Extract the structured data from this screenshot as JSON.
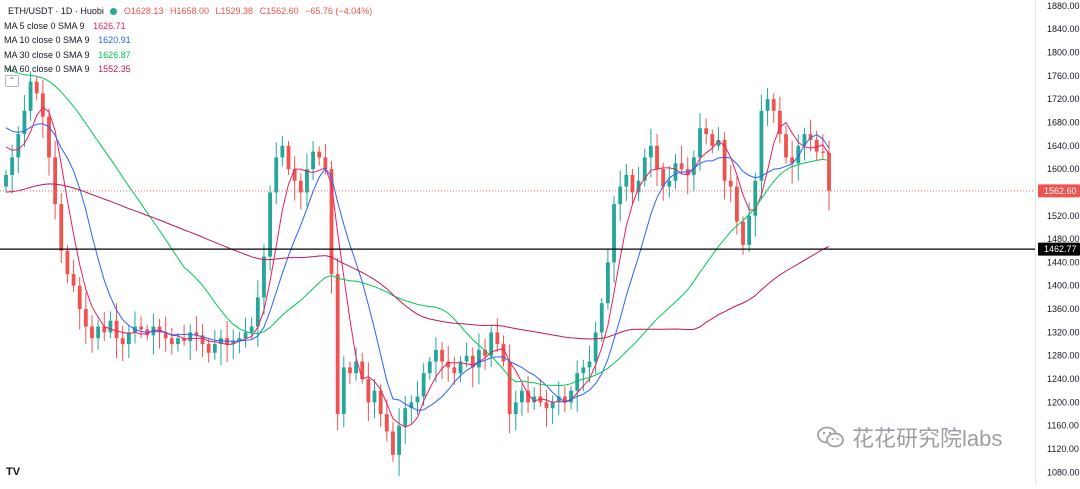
{
  "legend": {
    "symbol": "ETH/USDT · 1D · Huobi",
    "open": "O1628.13",
    "high": "H1658.00",
    "low": "L1529.38",
    "close": "C1562.60",
    "change": "−65.76 (−4.04%)",
    "ma5_label": "MA 5 close 0 SMA 9",
    "ma5_value": "1626.71",
    "ma10_label": "MA 10 close 0 SMA 9",
    "ma10_value": "1620.91",
    "ma30_label": "MA 30 close 0 SMA 9",
    "ma30_value": "1626.87",
    "ma60_label": "MA 60 close 0 SMA 9",
    "ma60_value": "1552.35"
  },
  "collapse_icon": "chevron-up-icon",
  "tv_logo": "TV",
  "watermark": {
    "text": "花花研究院labs",
    "icon": "wechat-icon"
  },
  "colors": {
    "up": "#26a69a",
    "down": "#ef5350",
    "ma5": "#e91e63",
    "ma10": "#2962ff",
    "ma30": "#00c853",
    "ma60": "#c2185b",
    "hline": "#000000",
    "price_tag": "#ef5350"
  },
  "chart_data": {
    "type": "candlestick",
    "title": "ETH/USDT · 1D · Huobi",
    "ylim": [
      1060,
      1890
    ],
    "y_ticks": [
      "1880.00",
      "1840.00",
      "1800.00",
      "1760.00",
      "1720.00",
      "1680.00",
      "1640.00",
      "1600.00",
      "1560.00",
      "1520.00",
      "1480.00",
      "1440.00",
      "1400.00",
      "1360.00",
      "1320.00",
      "1280.00",
      "1240.00",
      "1200.00",
      "1160.00",
      "1120.00",
      "1080.00"
    ],
    "y_tick_values": [
      1880,
      1840,
      1800,
      1760,
      1720,
      1680,
      1640,
      1600,
      1560,
      1520,
      1480,
      1440,
      1400,
      1360,
      1320,
      1280,
      1240,
      1200,
      1160,
      1120,
      1080
    ],
    "current_price": 1562.6,
    "current_price_label": "1562.60",
    "horizontal_line": 1462.77,
    "horizontal_line_label": "1462.77",
    "grid": false,
    "closes": [
      1590,
      1620,
      1660,
      1700,
      1750,
      1730,
      1690,
      1620,
      1540,
      1460,
      1420,
      1400,
      1360,
      1330,
      1310,
      1330,
      1320,
      1340,
      1310,
      1300,
      1320,
      1330,
      1325,
      1315,
      1330,
      1320,
      1310,
      1300,
      1310,
      1305,
      1320,
      1315,
      1300,
      1285,
      1300,
      1310,
      1300,
      1305,
      1310,
      1320,
      1330,
      1380,
      1450,
      1560,
      1620,
      1640,
      1600,
      1580,
      1560,
      1600,
      1630,
      1620,
      1600,
      1420,
      1180,
      1260,
      1250,
      1270,
      1240,
      1200,
      1220,
      1180,
      1150,
      1110,
      1160,
      1190,
      1200,
      1210,
      1250,
      1270,
      1290,
      1270,
      1260,
      1250,
      1270,
      1280,
      1260,
      1290,
      1280,
      1320,
      1300,
      1270,
      1180,
      1200,
      1220,
      1200,
      1210,
      1200,
      1190,
      1200,
      1210,
      1200,
      1220,
      1250,
      1260,
      1270,
      1320,
      1370,
      1440,
      1540,
      1570,
      1590,
      1560,
      1580,
      1620,
      1640,
      1600,
      1570,
      1580,
      1610,
      1600,
      1590,
      1620,
      1670,
      1660,
      1640,
      1650,
      1580,
      1570,
      1510,
      1470,
      1520,
      1580,
      1700,
      1720,
      1700,
      1660,
      1620,
      1610,
      1640,
      1660,
      1650,
      1630,
      1628,
      1563
    ],
    "ma5_last": 1626.71,
    "ma10_last": 1620.91,
    "ma30_last": 1626.87,
    "ma60_last": 1552.35
  }
}
